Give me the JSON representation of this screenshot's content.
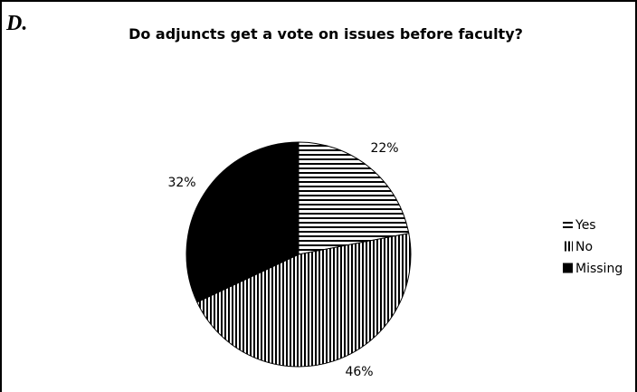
{
  "panel_label": "D.",
  "chart_data": {
    "type": "pie",
    "title": "Do adjuncts get a vote on issues before faculty?",
    "slices": [
      {
        "label": "Yes",
        "value": 22,
        "display": "22%",
        "pattern": "horizontal-stripes"
      },
      {
        "label": "No",
        "value": 46,
        "display": "46%",
        "pattern": "vertical-stripes"
      },
      {
        "label": "Missing",
        "value": 32,
        "display": "32%",
        "pattern": "solid-black"
      }
    ],
    "legend": {
      "placement": "right",
      "entries": [
        "Yes",
        "No",
        "Missing"
      ]
    },
    "colors": {
      "fill": "#000000",
      "background": "#ffffff"
    }
  }
}
